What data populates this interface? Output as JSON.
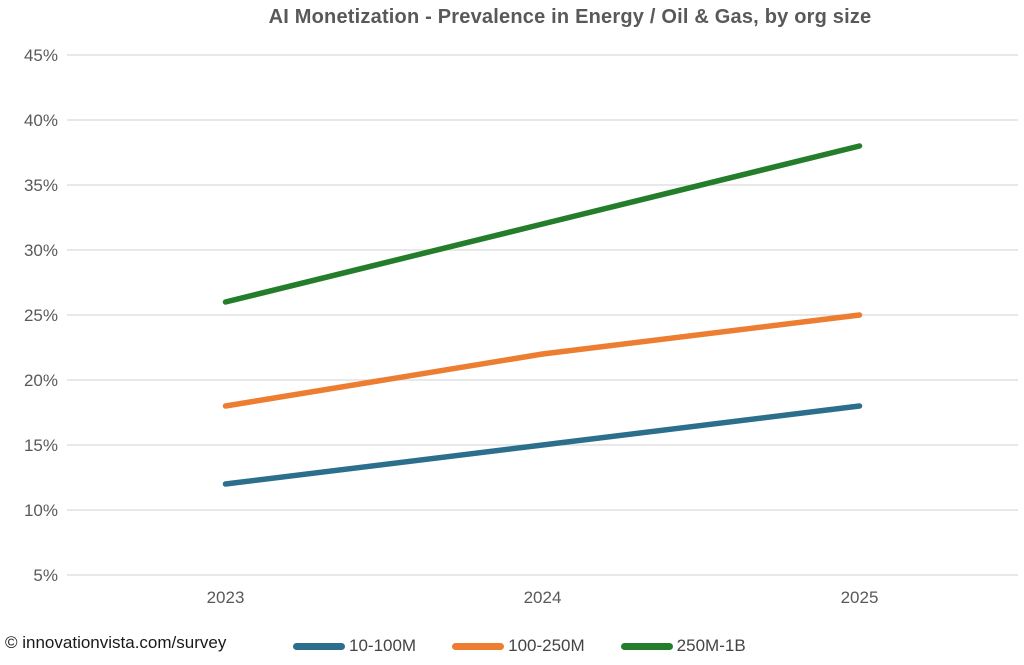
{
  "title": "AI Monetization - Prevalence in Energy / Oil & Gas, by org size",
  "footer": {
    "copyright": "© innovationvista.com/survey"
  },
  "colors": {
    "title_text": "#595959",
    "axis_text": "#595959",
    "gridline": "#d9d9d9",
    "background": "#ffffff",
    "copyright_text": "#1a1a1a",
    "legend_text": "#444444"
  },
  "chart_data": {
    "type": "line",
    "title": "AI Monetization - Prevalence in Energy / Oil & Gas, by org size",
    "categories": [
      "2023",
      "2024",
      "2025"
    ],
    "series": [
      {
        "name": "10-100M",
        "color": "#2B6F8D",
        "values": [
          12,
          15,
          18
        ]
      },
      {
        "name": "100-250M",
        "color": "#ED7D31",
        "values": [
          18,
          22,
          25
        ]
      },
      {
        "name": "250M-1B",
        "color": "#237D2B",
        "values": [
          26,
          32,
          38
        ]
      }
    ],
    "xlabel": "",
    "ylabel": "",
    "ylim": [
      5,
      45
    ],
    "ytick_step": 5,
    "ytick_suffix": "%",
    "grid": true,
    "legend_position": "bottom"
  }
}
